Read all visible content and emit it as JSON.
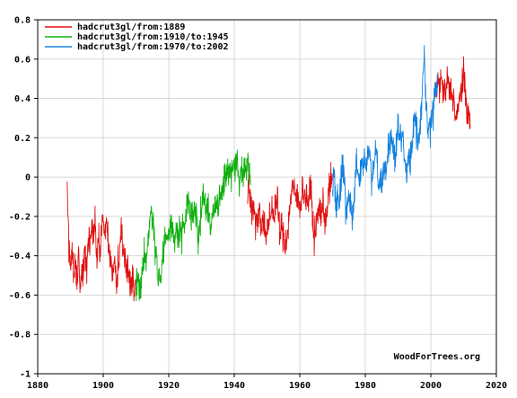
{
  "chart_data": {
    "type": "line",
    "title": "",
    "xlabel": "",
    "ylabel": "",
    "xlim": [
      1880,
      2020
    ],
    "ylim": [
      -1,
      0.8
    ],
    "x_ticks": [
      "1880",
      "1900",
      "1920",
      "1940",
      "1960",
      "1980",
      "2000",
      "2020"
    ],
    "y_ticks": [
      "0.8",
      "0.6",
      "0.4",
      "0.2",
      "0",
      "-0.2",
      "-0.4",
      "-0.6",
      "-0.8",
      "-1"
    ],
    "grid": true,
    "legend_position": "top-left",
    "credit": "WoodForTrees.org",
    "series": [
      {
        "name": "hadcrut3gl/from:1889",
        "color": "#e01010",
        "range": [
          1889,
          2012
        ],
        "samples": [
          [
            1889.0,
            -0.05
          ],
          [
            1889.5,
            -0.35
          ],
          [
            1890.0,
            -0.45
          ],
          [
            1890.5,
            -0.35
          ],
          [
            1891.0,
            -0.5
          ],
          [
            1891.5,
            -0.4
          ],
          [
            1892.0,
            -0.55
          ],
          [
            1892.5,
            -0.38
          ],
          [
            1893.0,
            -0.6
          ],
          [
            1893.5,
            -0.45
          ],
          [
            1894.0,
            -0.5
          ],
          [
            1894.5,
            -0.35
          ],
          [
            1895.0,
            -0.45
          ],
          [
            1895.5,
            -0.3
          ],
          [
            1896.0,
            -0.35
          ],
          [
            1896.5,
            -0.25
          ],
          [
            1897.0,
            -0.3
          ],
          [
            1897.5,
            -0.2
          ],
          [
            1898.0,
            -0.45
          ],
          [
            1898.5,
            -0.3
          ],
          [
            1899.0,
            -0.4
          ],
          [
            1899.5,
            -0.25
          ],
          [
            1900.0,
            -0.2
          ],
          [
            1900.5,
            -0.3
          ],
          [
            1901.0,
            -0.25
          ],
          [
            1901.5,
            -0.35
          ],
          [
            1902.0,
            -0.4
          ],
          [
            1902.5,
            -0.45
          ],
          [
            1903.0,
            -0.5
          ],
          [
            1903.5,
            -0.4
          ],
          [
            1904.0,
            -0.55
          ],
          [
            1904.5,
            -0.45
          ],
          [
            1905.0,
            -0.4
          ],
          [
            1905.5,
            -0.3
          ],
          [
            1906.0,
            -0.35
          ],
          [
            1906.5,
            -0.4
          ],
          [
            1907.0,
            -0.5
          ],
          [
            1907.5,
            -0.45
          ],
          [
            1908.0,
            -0.5
          ],
          [
            1908.5,
            -0.55
          ],
          [
            1909.0,
            -0.5
          ],
          [
            1909.5,
            -0.6
          ],
          [
            1910.0,
            -0.55
          ],
          [
            1944.0,
            -0.05
          ],
          [
            1944.5,
            0.0
          ],
          [
            1945.0,
            -0.1
          ],
          [
            1945.5,
            -0.2
          ],
          [
            1946.0,
            -0.15
          ],
          [
            1946.5,
            -0.25
          ],
          [
            1947.0,
            -0.2
          ],
          [
            1947.5,
            -0.15
          ],
          [
            1948.0,
            -0.2
          ],
          [
            1948.5,
            -0.25
          ],
          [
            1949.0,
            -0.2
          ],
          [
            1949.5,
            -0.3
          ],
          [
            1950.0,
            -0.3
          ],
          [
            1950.5,
            -0.25
          ],
          [
            1951.0,
            -0.2
          ],
          [
            1951.5,
            -0.15
          ],
          [
            1952.0,
            -0.2
          ],
          [
            1952.5,
            -0.15
          ],
          [
            1953.0,
            -0.1
          ],
          [
            1953.5,
            -0.2
          ],
          [
            1954.0,
            -0.3
          ],
          [
            1954.5,
            -0.25
          ],
          [
            1955.0,
            -0.3
          ],
          [
            1955.5,
            -0.35
          ],
          [
            1956.0,
            -0.3
          ],
          [
            1956.5,
            -0.25
          ],
          [
            1957.0,
            -0.15
          ],
          [
            1957.5,
            -0.05
          ],
          [
            1958.0,
            -0.05
          ],
          [
            1958.5,
            -0.1
          ],
          [
            1959.0,
            -0.1
          ],
          [
            1959.5,
            -0.12
          ],
          [
            1960.0,
            -0.15
          ],
          [
            1960.5,
            -0.1
          ],
          [
            1961.0,
            -0.05
          ],
          [
            1961.5,
            -0.1
          ],
          [
            1962.0,
            -0.1
          ],
          [
            1962.5,
            -0.12
          ],
          [
            1963.0,
            -0.1
          ],
          [
            1963.5,
            -0.05
          ],
          [
            1964.0,
            -0.25
          ],
          [
            1964.5,
            -0.3
          ],
          [
            1965.0,
            -0.25
          ],
          [
            1965.5,
            -0.2
          ],
          [
            1966.0,
            -0.15
          ],
          [
            1966.5,
            -0.18
          ],
          [
            1967.0,
            -0.15
          ],
          [
            1967.5,
            -0.2
          ],
          [
            1968.0,
            -0.2
          ],
          [
            1968.5,
            -0.15
          ],
          [
            1969.0,
            -0.05
          ],
          [
            1969.5,
            -0.02
          ],
          [
            1970.0,
            -0.05
          ],
          [
            2001.0,
            0.45
          ],
          [
            2001.5,
            0.4
          ],
          [
            2002.0,
            0.5
          ],
          [
            2002.5,
            0.45
          ],
          [
            2003.0,
            0.5
          ],
          [
            2003.5,
            0.45
          ],
          [
            2004.0,
            0.45
          ],
          [
            2004.5,
            0.4
          ],
          [
            2005.0,
            0.5
          ],
          [
            2005.5,
            0.45
          ],
          [
            2006.0,
            0.45
          ],
          [
            2006.5,
            0.42
          ],
          [
            2007.0,
            0.4
          ],
          [
            2007.5,
            0.3
          ],
          [
            2008.0,
            0.3
          ],
          [
            2008.5,
            0.35
          ],
          [
            2009.0,
            0.45
          ],
          [
            2009.5,
            0.45
          ],
          [
            2010.0,
            0.5
          ],
          [
            2010.5,
            0.45
          ],
          [
            2011.0,
            0.35
          ],
          [
            2011.5,
            0.3
          ],
          [
            2012.0,
            0.3
          ]
        ]
      },
      {
        "name": "hadcrut3gl/from:1910/to:1945",
        "color": "#10b010",
        "range": [
          1910,
          1945
        ],
        "samples": [
          [
            1910.0,
            -0.55
          ],
          [
            1910.5,
            -0.5
          ],
          [
            1911.0,
            -0.6
          ],
          [
            1911.5,
            -0.55
          ],
          [
            1912.0,
            -0.45
          ],
          [
            1912.5,
            -0.4
          ],
          [
            1913.0,
            -0.45
          ],
          [
            1913.5,
            -0.35
          ],
          [
            1914.0,
            -0.25
          ],
          [
            1914.5,
            -0.2
          ],
          [
            1915.0,
            -0.2
          ],
          [
            1915.5,
            -0.25
          ],
          [
            1916.0,
            -0.4
          ],
          [
            1916.5,
            -0.45
          ],
          [
            1917.0,
            -0.55
          ],
          [
            1917.5,
            -0.5
          ],
          [
            1918.0,
            -0.45
          ],
          [
            1918.5,
            -0.35
          ],
          [
            1919.0,
            -0.3
          ],
          [
            1919.5,
            -0.3
          ],
          [
            1920.0,
            -0.3
          ],
          [
            1920.5,
            -0.25
          ],
          [
            1921.0,
            -0.25
          ],
          [
            1921.5,
            -0.3
          ],
          [
            1922.0,
            -0.3
          ],
          [
            1922.5,
            -0.28
          ],
          [
            1923.0,
            -0.3
          ],
          [
            1923.5,
            -0.25
          ],
          [
            1924.0,
            -0.3
          ],
          [
            1924.5,
            -0.25
          ],
          [
            1925.0,
            -0.2
          ],
          [
            1925.5,
            -0.15
          ],
          [
            1926.0,
            -0.1
          ],
          [
            1926.5,
            -0.15
          ],
          [
            1927.0,
            -0.2
          ],
          [
            1927.5,
            -0.15
          ],
          [
            1928.0,
            -0.2
          ],
          [
            1928.5,
            -0.22
          ],
          [
            1929.0,
            -0.35
          ],
          [
            1929.5,
            -0.25
          ],
          [
            1930.0,
            -0.15
          ],
          [
            1930.5,
            -0.1
          ],
          [
            1931.0,
            -0.1
          ],
          [
            1931.5,
            -0.15
          ],
          [
            1932.0,
            -0.15
          ],
          [
            1932.5,
            -0.2
          ],
          [
            1933.0,
            -0.25
          ],
          [
            1933.5,
            -0.2
          ],
          [
            1934.0,
            -0.15
          ],
          [
            1934.5,
            -0.12
          ],
          [
            1935.0,
            -0.15
          ],
          [
            1935.5,
            -0.12
          ],
          [
            1936.0,
            -0.1
          ],
          [
            1936.5,
            -0.05
          ],
          [
            1937.0,
            0.0
          ],
          [
            1937.5,
            0.02
          ],
          [
            1938.0,
            0.0
          ],
          [
            1938.5,
            0.05
          ],
          [
            1939.0,
            0.0
          ],
          [
            1939.5,
            0.05
          ],
          [
            1940.0,
            0.05
          ],
          [
            1940.5,
            0.1
          ],
          [
            1941.0,
            0.05
          ],
          [
            1941.5,
            0.0
          ],
          [
            1942.0,
            0.05
          ],
          [
            1942.5,
            0.0
          ],
          [
            1943.0,
            0.05
          ],
          [
            1943.5,
            0.05
          ],
          [
            1944.0,
            0.1
          ],
          [
            1944.5,
            0.05
          ],
          [
            1945.0,
            -0.05
          ]
        ]
      },
      {
        "name": "hadcrut3gl/from:1970/to:2002",
        "color": "#1080e0",
        "range": [
          1970,
          2002
        ],
        "samples": [
          [
            1970.0,
            -0.05
          ],
          [
            1970.5,
            0.0
          ],
          [
            1971.0,
            -0.15
          ],
          [
            1971.5,
            -0.1
          ],
          [
            1972.0,
            -0.15
          ],
          [
            1972.5,
            -0.05
          ],
          [
            1973.0,
            0.05
          ],
          [
            1973.5,
            0.0
          ],
          [
            1974.0,
            -0.2
          ],
          [
            1974.5,
            -0.15
          ],
          [
            1975.0,
            -0.1
          ],
          [
            1975.5,
            -0.15
          ],
          [
            1976.0,
            -0.2
          ],
          [
            1976.5,
            -0.15
          ],
          [
            1977.0,
            0.05
          ],
          [
            1977.5,
            0.05
          ],
          [
            1978.0,
            0.0
          ],
          [
            1978.5,
            0.0
          ],
          [
            1979.0,
            0.05
          ],
          [
            1979.5,
            0.1
          ],
          [
            1980.0,
            0.1
          ],
          [
            1980.5,
            0.05
          ],
          [
            1981.0,
            0.15
          ],
          [
            1981.5,
            0.1
          ],
          [
            1982.0,
            0.0
          ],
          [
            1982.5,
            0.05
          ],
          [
            1983.0,
            0.15
          ],
          [
            1983.5,
            0.1
          ],
          [
            1984.0,
            -0.05
          ],
          [
            1984.5,
            0.0
          ],
          [
            1985.0,
            -0.05
          ],
          [
            1985.5,
            0.0
          ],
          [
            1986.0,
            0.05
          ],
          [
            1986.5,
            0.05
          ],
          [
            1987.0,
            0.15
          ],
          [
            1987.5,
            0.2
          ],
          [
            1988.0,
            0.2
          ],
          [
            1988.5,
            0.15
          ],
          [
            1989.0,
            0.1
          ],
          [
            1989.5,
            0.15
          ],
          [
            1990.0,
            0.25
          ],
          [
            1990.5,
            0.25
          ],
          [
            1991.0,
            0.2
          ],
          [
            1991.5,
            0.2
          ],
          [
            1992.0,
            0.05
          ],
          [
            1992.5,
            0.05
          ],
          [
            1993.0,
            0.1
          ],
          [
            1993.5,
            0.1
          ],
          [
            1994.0,
            0.15
          ],
          [
            1994.5,
            0.2
          ],
          [
            1995.0,
            0.3
          ],
          [
            1995.5,
            0.25
          ],
          [
            1996.0,
            0.15
          ],
          [
            1996.5,
            0.2
          ],
          [
            1997.0,
            0.35
          ],
          [
            1997.5,
            0.45
          ],
          [
            1998.0,
            0.6
          ],
          [
            1998.5,
            0.45
          ],
          [
            1999.0,
            0.25
          ],
          [
            1999.5,
            0.25
          ],
          [
            2000.0,
            0.25
          ],
          [
            2000.5,
            0.3
          ],
          [
            2001.0,
            0.4
          ],
          [
            2001.5,
            0.45
          ],
          [
            2002.0,
            0.5
          ]
        ]
      }
    ]
  }
}
